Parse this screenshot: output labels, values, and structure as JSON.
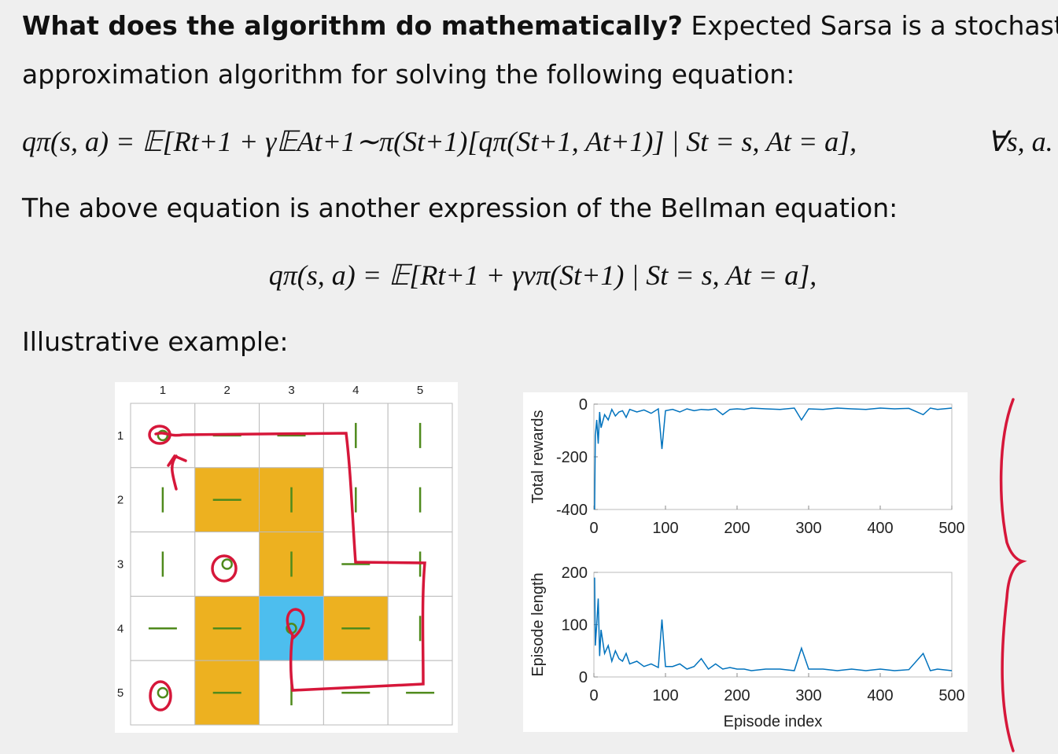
{
  "slide": {
    "heading_bold": "What does the algorithm do mathematically?",
    "heading_rest": " Expected Sarsa is a stochastic",
    "line_2": "approximation algorithm for solving the following equation:",
    "equation_1": "qπ(s, a) = 𝔼[Rt+1 + γ𝔼At+1∼π(St+1)[qπ(St+1, At+1)] | St = s, At = a],",
    "equation_1_quantifier": "∀s, a.",
    "line_3": "The above equation is another expression of the Bellman equation:",
    "equation_2": "qπ(s, a) = 𝔼[Rt+1 + γvπ(St+1) | St = s, At = a],",
    "line_4": "Illustrative example:"
  },
  "grid": {
    "column_labels": [
      "1",
      "2",
      "3",
      "4",
      "5"
    ],
    "row_labels": [
      "1",
      "2",
      "3",
      "4",
      "5"
    ]
  },
  "chart_data": [
    {
      "type": "line",
      "ylabel": "Total rewards",
      "color": "#0072bd",
      "x": [
        1,
        2,
        4,
        6,
        8,
        10,
        15,
        20,
        25,
        30,
        35,
        40,
        45,
        50,
        60,
        70,
        80,
        90,
        95,
        100,
        110,
        120,
        130,
        140,
        150,
        160,
        170,
        180,
        190,
        200,
        210,
        220,
        240,
        260,
        280,
        290,
        300,
        320,
        340,
        360,
        380,
        400,
        420,
        440,
        460,
        470,
        480,
        500
      ],
      "values": [
        -400,
        -120,
        -60,
        -150,
        -30,
        -90,
        -40,
        -60,
        -20,
        -45,
        -30,
        -25,
        -50,
        -20,
        -30,
        -22,
        -35,
        -18,
        -170,
        -25,
        -20,
        -30,
        -18,
        -25,
        -20,
        -22,
        -18,
        -40,
        -20,
        -18,
        -20,
        -15,
        -18,
        -20,
        -15,
        -60,
        -18,
        -20,
        -15,
        -18,
        -20,
        -15,
        -18,
        -16,
        -40,
        -15,
        -20,
        -15
      ],
      "xlim": [
        0,
        500
      ],
      "xticks": [
        0,
        100,
        200,
        300,
        400,
        500
      ],
      "ylim": [
        -400,
        0
      ],
      "yticks": [
        0,
        -200,
        -400
      ]
    },
    {
      "type": "line",
      "ylabel": "Episode length",
      "xlabel": "Episode index",
      "color": "#0072bd",
      "x": [
        1,
        2,
        4,
        6,
        8,
        10,
        15,
        20,
        25,
        30,
        35,
        40,
        45,
        50,
        60,
        70,
        80,
        90,
        95,
        100,
        110,
        120,
        130,
        140,
        150,
        160,
        170,
        180,
        190,
        200,
        210,
        220,
        240,
        260,
        280,
        290,
        300,
        320,
        340,
        360,
        380,
        400,
        420,
        440,
        460,
        470,
        480,
        500
      ],
      "values": [
        190,
        60,
        100,
        150,
        40,
        90,
        45,
        60,
        30,
        50,
        35,
        30,
        45,
        25,
        30,
        20,
        25,
        18,
        110,
        20,
        20,
        25,
        15,
        20,
        35,
        15,
        25,
        15,
        18,
        15,
        15,
        12,
        15,
        15,
        12,
        55,
        15,
        15,
        12,
        15,
        12,
        15,
        12,
        14,
        45,
        12,
        15,
        12
      ],
      "xlim": [
        0,
        500
      ],
      "xticks": [
        0,
        100,
        200,
        300,
        400,
        500
      ],
      "ylim": [
        0,
        200
      ],
      "yticks": [
        0,
        100,
        200
      ]
    }
  ]
}
